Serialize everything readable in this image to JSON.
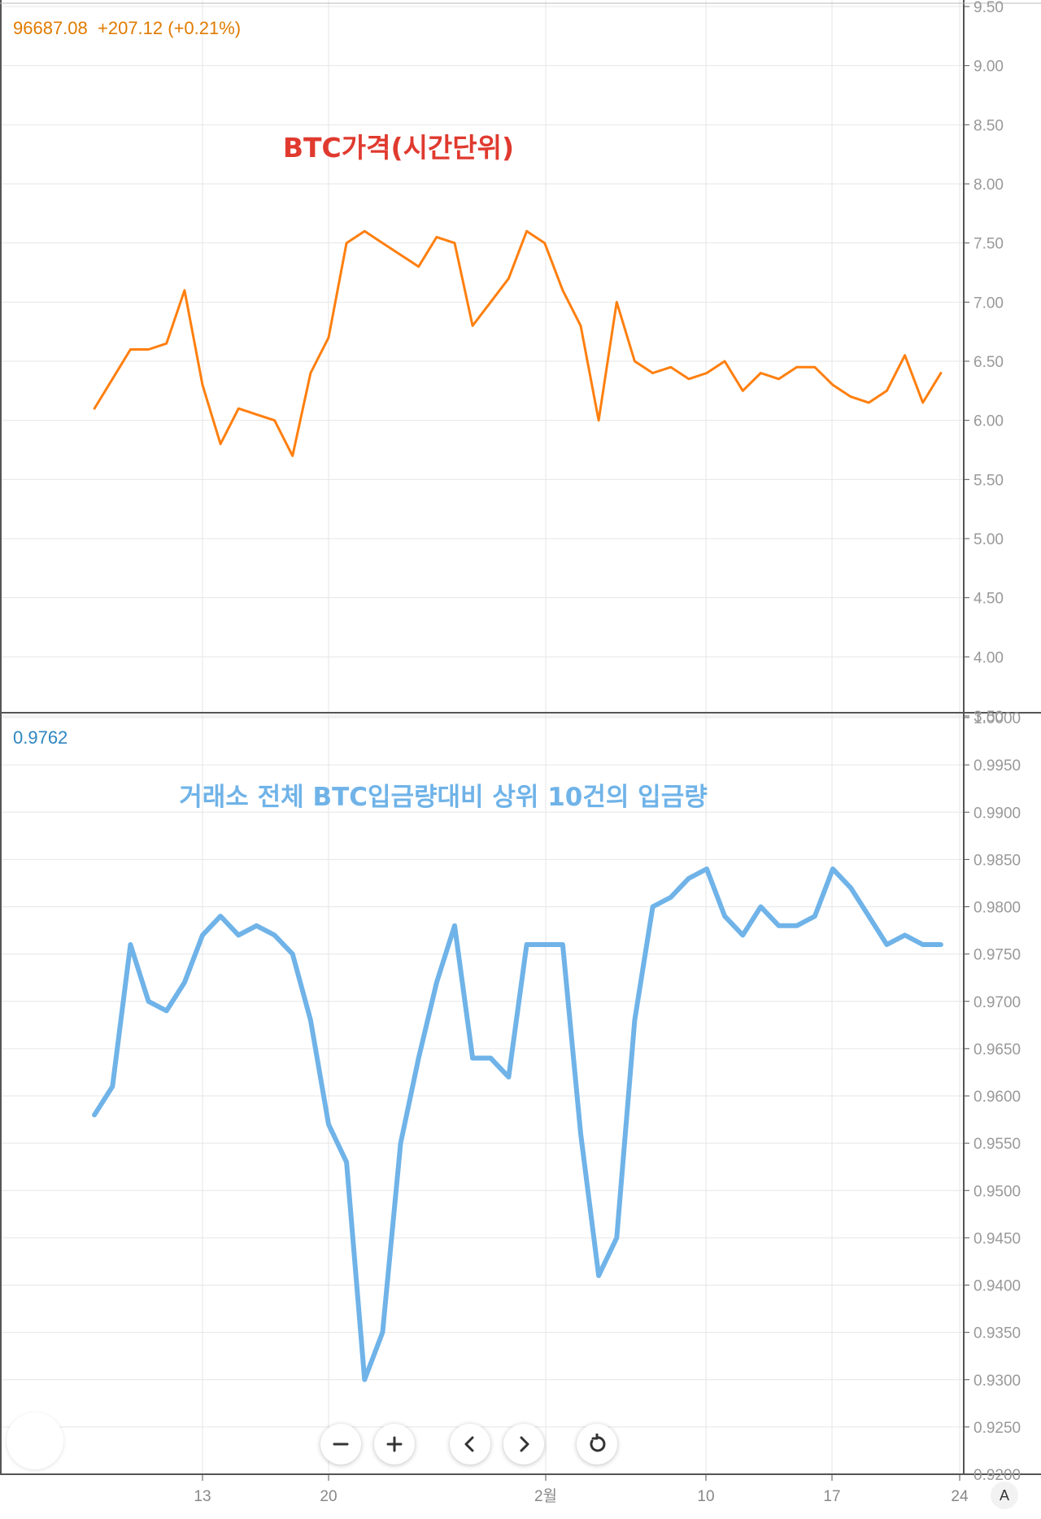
{
  "top_panel": {
    "readout_price": "96687.08",
    "readout_change": "+207.12 (+0.21%)",
    "readout_color": "#e07b00",
    "annotation": "BTC가격(시간단위)",
    "annotation_color": "#e03a2f"
  },
  "bottom_panel": {
    "readout_value": "0.9762",
    "readout_color": "#2e86c1",
    "annotation": "거래소 전체 BTC입금량대비 상위 10건의 입금량",
    "annotation_color": "#6fb3e8"
  },
  "controls": {
    "zoom_out_icon": "minus-icon",
    "zoom_in_icon": "plus-icon",
    "scroll_left_icon": "chevron-left-icon",
    "scroll_right_icon": "chevron-right-icon",
    "reset_icon": "reset-icon",
    "auto_scale_label": "A"
  },
  "chart_data": [
    {
      "type": "line",
      "title": "BTC가격(시간단위)",
      "color": "#ff7f0e",
      "y_tick_labels": [
        "3.50",
        "4.00",
        "4.50",
        "5.00",
        "5.50",
        "6.00",
        "6.50",
        "7.00",
        "7.50",
        "8.00",
        "8.50",
        "9.00",
        "9.50"
      ],
      "ylim": [
        3.5,
        9.5
      ],
      "x_tick_labels": [
        "13",
        "20",
        "2월",
        "10",
        "17",
        "24"
      ],
      "grid": true,
      "series": [
        {
          "x": [
            "Jan 7",
            "Jan 8",
            "Jan 9",
            "Jan 10",
            "Jan 11",
            "Jan 12",
            "Jan 13",
            "Jan 14",
            "Jan 15",
            "Jan 16",
            "Jan 17",
            "Jan 18",
            "Jan 19",
            "Jan 20",
            "Jan 21",
            "Jan 22",
            "Jan 23",
            "Jan 24",
            "Jan 25",
            "Jan 26",
            "Jan 27",
            "Jan 28",
            "Jan 29",
            "Jan 30",
            "Jan 31",
            "Feb 1",
            "Feb 2",
            "Feb 3",
            "Feb 4",
            "Feb 5",
            "Feb 6",
            "Feb 7",
            "Feb 8",
            "Feb 9",
            "Feb 10",
            "Feb 11",
            "Feb 12",
            "Feb 13",
            "Feb 14",
            "Feb 15",
            "Feb 16",
            "Feb 17",
            "Feb 18",
            "Feb 19",
            "Feb 20",
            "Feb 21",
            "Feb 22",
            "Feb 23"
          ],
          "values": [
            6.1,
            6.35,
            6.6,
            6.6,
            6.65,
            7.1,
            6.3,
            5.8,
            6.1,
            6.05,
            6.0,
            5.7,
            6.4,
            6.7,
            7.5,
            7.6,
            7.5,
            7.4,
            7.3,
            7.55,
            7.5,
            6.8,
            7.0,
            7.2,
            7.6,
            7.5,
            7.1,
            6.8,
            6.0,
            7.0,
            6.5,
            6.4,
            6.45,
            6.35,
            6.4,
            6.5,
            6.25,
            6.4,
            6.35,
            6.45,
            6.45,
            6.3,
            6.2,
            6.15,
            6.25,
            6.55,
            6.15,
            6.4
          ]
        }
      ]
    },
    {
      "type": "line",
      "title": "거래소 전체 BTC입금량대비 상위 10건의 입금량",
      "color": "#6fb3e8",
      "y_tick_labels": [
        "0.9200",
        "0.9250",
        "0.9300",
        "0.9350",
        "0.9400",
        "0.9450",
        "0.9500",
        "0.9550",
        "0.9600",
        "0.9650",
        "0.9700",
        "0.9750",
        "0.9800",
        "0.9850",
        "0.9900",
        "0.9950",
        "1.0000"
      ],
      "ylim": [
        0.92,
        1.0
      ],
      "x_tick_labels": [
        "13",
        "20",
        "2월",
        "10",
        "17",
        "24"
      ],
      "grid": true,
      "series": [
        {
          "x": [
            "Jan 7",
            "Jan 8",
            "Jan 9",
            "Jan 10",
            "Jan 11",
            "Jan 12",
            "Jan 13",
            "Jan 14",
            "Jan 15",
            "Jan 16",
            "Jan 17",
            "Jan 18",
            "Jan 19",
            "Jan 20",
            "Jan 21",
            "Jan 22",
            "Jan 23",
            "Jan 24",
            "Jan 25",
            "Jan 26",
            "Jan 27",
            "Jan 28",
            "Jan 29",
            "Jan 30",
            "Jan 31",
            "Feb 1",
            "Feb 2",
            "Feb 3",
            "Feb 4",
            "Feb 5",
            "Feb 6",
            "Feb 7",
            "Feb 8",
            "Feb 9",
            "Feb 10",
            "Feb 11",
            "Feb 12",
            "Feb 13",
            "Feb 14",
            "Feb 15",
            "Feb 16",
            "Feb 17",
            "Feb 18",
            "Feb 19",
            "Feb 20",
            "Feb 21",
            "Feb 22",
            "Feb 23"
          ],
          "values": [
            0.958,
            0.961,
            0.976,
            0.97,
            0.969,
            0.972,
            0.977,
            0.979,
            0.977,
            0.978,
            0.977,
            0.975,
            0.968,
            0.957,
            0.953,
            0.93,
            0.935,
            0.955,
            0.964,
            0.972,
            0.978,
            0.964,
            0.964,
            0.962,
            0.976,
            0.976,
            0.976,
            0.956,
            0.941,
            0.945,
            0.968,
            0.98,
            0.981,
            0.983,
            0.984,
            0.979,
            0.977,
            0.98,
            0.978,
            0.978,
            0.979,
            0.984,
            0.982,
            0.979,
            0.976,
            0.977,
            0.976,
            0.976
          ]
        }
      ]
    }
  ]
}
